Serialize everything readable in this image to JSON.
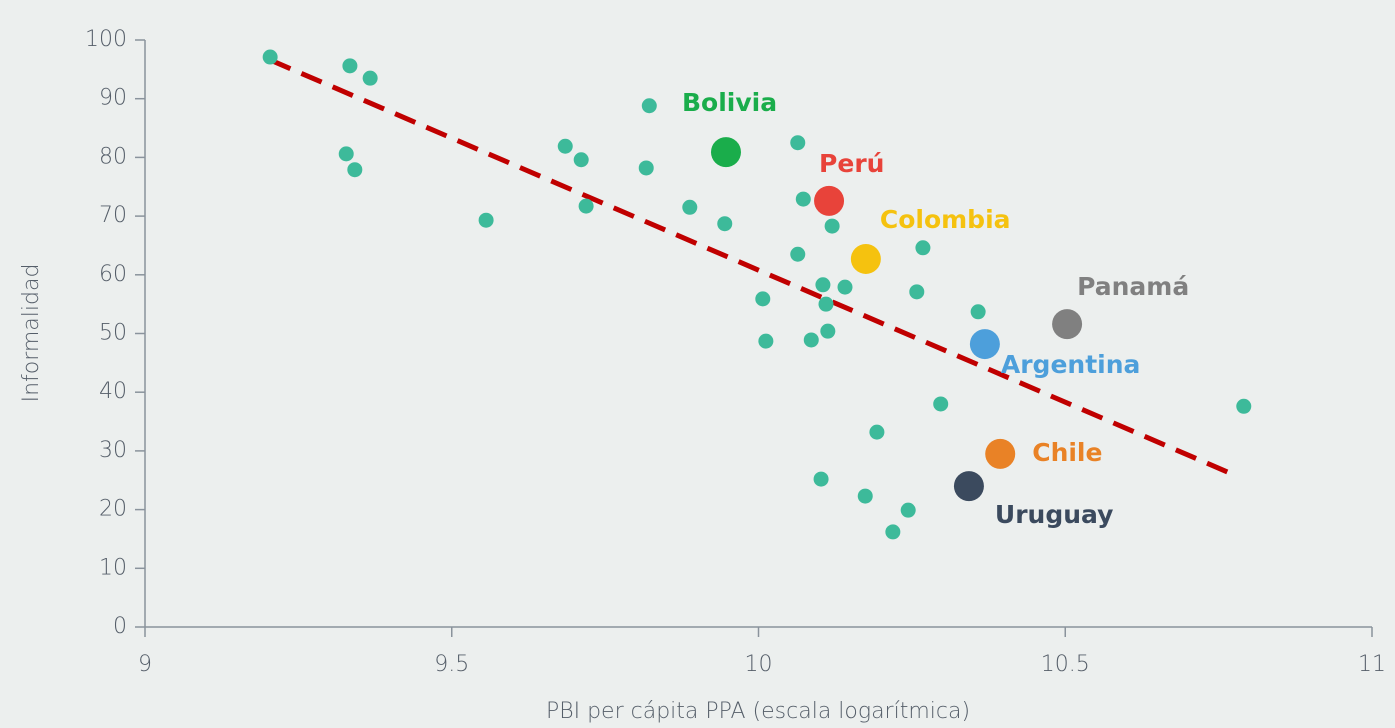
{
  "chart_data": {
    "type": "scatter",
    "x_label": "PBI per cápita PPA (escala logarítmica)",
    "y_label": "Informalidad",
    "xlim": [
      9,
      11
    ],
    "xticks": [
      9,
      9.5,
      10,
      10.5,
      11
    ],
    "ylim": [
      0,
      100
    ],
    "yticks": [
      0,
      10,
      20,
      30,
      40,
      50,
      60,
      70,
      80,
      90,
      100
    ],
    "grid": false,
    "series": [
      {
        "color": "#3dba9a",
        "x": [
          9.204,
          9.334,
          9.367,
          9.328,
          9.342,
          9.556,
          9.685,
          9.711,
          9.719,
          9.822,
          9.817,
          9.888,
          9.945,
          10.064,
          10.073,
          10.12,
          10.064,
          10.007,
          10.105,
          10.141,
          10.11,
          10.113,
          10.012,
          10.086,
          10.268,
          10.258,
          10.358,
          10.297,
          10.193,
          10.102,
          10.174,
          10.244,
          10.219,
          10.791
        ],
        "values": [
          97.1,
          95.6,
          93.5,
          80.6,
          77.9,
          69.3,
          81.9,
          79.6,
          71.7,
          88.8,
          78.2,
          71.5,
          68.7,
          82.5,
          72.9,
          68.3,
          63.5,
          55.9,
          58.3,
          57.9,
          55.0,
          50.4,
          48.7,
          48.9,
          64.6,
          57.1,
          53.7,
          38.0,
          33.2,
          25.2,
          22.3,
          19.9,
          16.2,
          37.6
        ]
      }
    ],
    "highlights": [
      {
        "name": "Bolivia",
        "color": "#1aad4b",
        "x": 9.947,
        "value": 80.9
      },
      {
        "name": "Perú",
        "color": "#e8433a",
        "x": 10.115,
        "value": 72.6
      },
      {
        "name": "Colombia",
        "color": "#f5c20f",
        "x": 10.175,
        "value": 62.7
      },
      {
        "name": "Panamá",
        "color": "#808080",
        "x": 10.503,
        "value": 51.6
      },
      {
        "name": "Argentina",
        "color": "#4d9fdb",
        "x": 10.369,
        "value": 48.2
      },
      {
        "name": "Chile",
        "color": "#e98226",
        "x": 10.394,
        "value": 29.5
      },
      {
        "name": "Uruguay",
        "color": "#3b4a5e",
        "x": 10.343,
        "value": 24.0
      }
    ],
    "trendline": {
      "color": "#c00000",
      "x": [
        9.204,
        10.769
      ],
      "values": [
        96.6,
        26.2
      ]
    }
  }
}
